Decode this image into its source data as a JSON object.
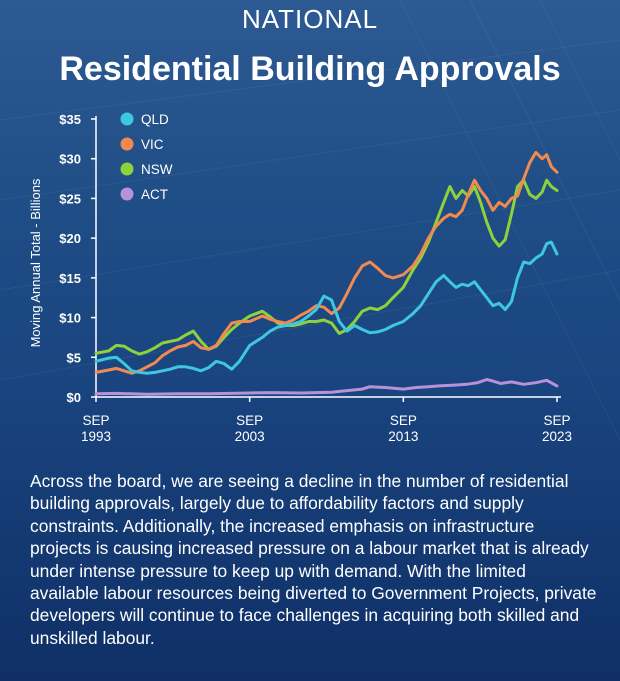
{
  "header": {
    "kicker": "NATIONAL",
    "title": "Residential Building Approvals"
  },
  "colors": {
    "QLD": "#3ec7e0",
    "VIC": "#f28a50",
    "NSW": "#8dd23c",
    "ACT": "#b792d8",
    "axis": "#ffffff"
  },
  "chart_data": {
    "type": "line",
    "ylabel": "Moving Annual Total - Billions",
    "ylim": [
      0,
      35
    ],
    "yticks": [
      "$0",
      "$5",
      "$10",
      "$15",
      "$20",
      "$25",
      "$30",
      "$35"
    ],
    "xlim": [
      1993.67,
      2023.67
    ],
    "xticks": [
      {
        "x": 1993.67,
        "line1": "SEP",
        "line2": "1993"
      },
      {
        "x": 2003.67,
        "line1": "SEP",
        "line2": "2003"
      },
      {
        "x": 2013.67,
        "line1": "SEP",
        "line2": "2013"
      },
      {
        "x": 2023.67,
        "line1": "SEP",
        "line2": "2023"
      }
    ],
    "legend_position": "top-left",
    "grid": false,
    "series": [
      {
        "name": "QLD",
        "points": [
          [
            1993.67,
            4.5
          ],
          [
            1994.5,
            4.9
          ],
          [
            1995.0,
            5.0
          ],
          [
            1995.5,
            4.2
          ],
          [
            1996.0,
            3.3
          ],
          [
            1996.5,
            3.1
          ],
          [
            1997.0,
            3.0
          ],
          [
            1997.5,
            3.1
          ],
          [
            1998.0,
            3.3
          ],
          [
            1998.5,
            3.5
          ],
          [
            1999.0,
            3.8
          ],
          [
            1999.5,
            3.8
          ],
          [
            2000.0,
            3.6
          ],
          [
            2000.5,
            3.3
          ],
          [
            2001.0,
            3.7
          ],
          [
            2001.5,
            4.5
          ],
          [
            2002.0,
            4.2
          ],
          [
            2002.5,
            3.5
          ],
          [
            2003.0,
            4.5
          ],
          [
            2003.67,
            6.5
          ],
          [
            2004.5,
            7.5
          ],
          [
            2005.0,
            8.3
          ],
          [
            2005.5,
            8.8
          ],
          [
            2006.0,
            9.0
          ],
          [
            2006.5,
            9.2
          ],
          [
            2007.0,
            9.5
          ],
          [
            2007.5,
            10.2
          ],
          [
            2008.0,
            11.0
          ],
          [
            2008.5,
            12.7
          ],
          [
            2009.0,
            12.2
          ],
          [
            2009.5,
            9.5
          ],
          [
            2010.0,
            8.3
          ],
          [
            2010.5,
            9.0
          ],
          [
            2011.0,
            8.5
          ],
          [
            2011.5,
            8.1
          ],
          [
            2012.0,
            8.2
          ],
          [
            2012.5,
            8.5
          ],
          [
            2013.0,
            9.0
          ],
          [
            2013.67,
            9.5
          ],
          [
            2014.3,
            10.5
          ],
          [
            2014.8,
            11.5
          ],
          [
            2015.3,
            13.0
          ],
          [
            2015.8,
            14.5
          ],
          [
            2016.3,
            15.3
          ],
          [
            2016.7,
            14.5
          ],
          [
            2017.1,
            13.8
          ],
          [
            2017.5,
            14.2
          ],
          [
            2017.9,
            14.0
          ],
          [
            2018.3,
            14.5
          ],
          [
            2018.7,
            13.5
          ],
          [
            2019.1,
            12.5
          ],
          [
            2019.5,
            11.5
          ],
          [
            2019.9,
            11.8
          ],
          [
            2020.3,
            11.0
          ],
          [
            2020.7,
            12.0
          ],
          [
            2021.1,
            15.0
          ],
          [
            2021.5,
            17.0
          ],
          [
            2021.9,
            16.8
          ],
          [
            2022.3,
            17.5
          ],
          [
            2022.7,
            18.0
          ],
          [
            2023.0,
            19.3
          ],
          [
            2023.3,
            19.5
          ],
          [
            2023.67,
            18.0
          ]
        ]
      },
      {
        "name": "VIC",
        "points": [
          [
            1993.67,
            3.1
          ],
          [
            1994.5,
            3.4
          ],
          [
            1995.0,
            3.6
          ],
          [
            1995.5,
            3.3
          ],
          [
            1996.0,
            3.0
          ],
          [
            1996.5,
            3.3
          ],
          [
            1997.0,
            3.8
          ],
          [
            1997.5,
            4.3
          ],
          [
            1998.0,
            5.2
          ],
          [
            1998.5,
            5.8
          ],
          [
            1999.0,
            6.3
          ],
          [
            1999.5,
            6.5
          ],
          [
            2000.0,
            7.0
          ],
          [
            2000.5,
            6.2
          ],
          [
            2001.0,
            6.0
          ],
          [
            2001.5,
            6.5
          ],
          [
            2002.0,
            8.0
          ],
          [
            2002.5,
            9.3
          ],
          [
            2003.0,
            9.5
          ],
          [
            2003.67,
            9.5
          ],
          [
            2004.5,
            10.2
          ],
          [
            2005.0,
            9.8
          ],
          [
            2005.5,
            9.5
          ],
          [
            2006.0,
            9.3
          ],
          [
            2006.5,
            9.7
          ],
          [
            2007.0,
            10.3
          ],
          [
            2007.5,
            10.8
          ],
          [
            2008.0,
            11.5
          ],
          [
            2008.5,
            11.3
          ],
          [
            2009.0,
            10.5
          ],
          [
            2009.5,
            11.2
          ],
          [
            2010.0,
            13.0
          ],
          [
            2010.5,
            15.0
          ],
          [
            2011.0,
            16.5
          ],
          [
            2011.5,
            17.0
          ],
          [
            2012.0,
            16.2
          ],
          [
            2012.5,
            15.3
          ],
          [
            2013.0,
            15.0
          ],
          [
            2013.67,
            15.4
          ],
          [
            2014.3,
            16.5
          ],
          [
            2014.8,
            18.0
          ],
          [
            2015.3,
            20.0
          ],
          [
            2015.8,
            21.5
          ],
          [
            2016.3,
            22.5
          ],
          [
            2016.7,
            23.0
          ],
          [
            2017.1,
            22.7
          ],
          [
            2017.5,
            23.5
          ],
          [
            2017.9,
            25.5
          ],
          [
            2018.3,
            27.3
          ],
          [
            2018.7,
            26.0
          ],
          [
            2019.1,
            25.0
          ],
          [
            2019.5,
            23.5
          ],
          [
            2019.9,
            24.5
          ],
          [
            2020.3,
            24.0
          ],
          [
            2020.7,
            25.0
          ],
          [
            2021.1,
            25.3
          ],
          [
            2021.5,
            27.5
          ],
          [
            2021.9,
            29.5
          ],
          [
            2022.3,
            30.8
          ],
          [
            2022.7,
            30.0
          ],
          [
            2023.0,
            30.5
          ],
          [
            2023.3,
            29.0
          ],
          [
            2023.67,
            28.3
          ]
        ]
      },
      {
        "name": "NSW",
        "points": [
          [
            1993.67,
            5.5
          ],
          [
            1994.5,
            5.8
          ],
          [
            1995.0,
            6.5
          ],
          [
            1995.5,
            6.4
          ],
          [
            1996.0,
            5.8
          ],
          [
            1996.5,
            5.4
          ],
          [
            1997.0,
            5.7
          ],
          [
            1997.5,
            6.2
          ],
          [
            1998.0,
            6.8
          ],
          [
            1998.5,
            7.0
          ],
          [
            1999.0,
            7.2
          ],
          [
            1999.5,
            7.8
          ],
          [
            2000.0,
            8.3
          ],
          [
            2000.5,
            7.0
          ],
          [
            2001.0,
            6.0
          ],
          [
            2001.5,
            6.4
          ],
          [
            2002.0,
            7.5
          ],
          [
            2002.5,
            8.5
          ],
          [
            2003.0,
            9.3
          ],
          [
            2003.67,
            10.2
          ],
          [
            2004.5,
            10.8
          ],
          [
            2005.0,
            10.1
          ],
          [
            2005.5,
            9.3
          ],
          [
            2006.0,
            9.0
          ],
          [
            2006.5,
            9.0
          ],
          [
            2007.0,
            9.2
          ],
          [
            2007.5,
            9.5
          ],
          [
            2008.0,
            9.5
          ],
          [
            2008.5,
            9.7
          ],
          [
            2009.0,
            9.3
          ],
          [
            2009.5,
            8.0
          ],
          [
            2010.0,
            8.5
          ],
          [
            2010.5,
            9.5
          ],
          [
            2011.0,
            10.8
          ],
          [
            2011.5,
            11.2
          ],
          [
            2012.0,
            11.0
          ],
          [
            2012.5,
            11.5
          ],
          [
            2013.0,
            12.5
          ],
          [
            2013.67,
            13.8
          ],
          [
            2014.3,
            16.0
          ],
          [
            2014.8,
            17.5
          ],
          [
            2015.3,
            19.5
          ],
          [
            2015.8,
            22.0
          ],
          [
            2016.3,
            24.5
          ],
          [
            2016.7,
            26.5
          ],
          [
            2017.1,
            25.0
          ],
          [
            2017.5,
            26.0
          ],
          [
            2017.9,
            25.3
          ],
          [
            2018.3,
            26.5
          ],
          [
            2018.7,
            24.5
          ],
          [
            2019.1,
            22.0
          ],
          [
            2019.5,
            20.0
          ],
          [
            2019.9,
            19.0
          ],
          [
            2020.3,
            19.8
          ],
          [
            2020.7,
            23.0
          ],
          [
            2021.1,
            26.5
          ],
          [
            2021.5,
            27.3
          ],
          [
            2021.9,
            25.5
          ],
          [
            2022.3,
            25.0
          ],
          [
            2022.7,
            25.8
          ],
          [
            2023.0,
            27.3
          ],
          [
            2023.3,
            26.5
          ],
          [
            2023.67,
            26.0
          ]
        ]
      },
      {
        "name": "ACT",
        "points": [
          [
            1993.67,
            0.4
          ],
          [
            1995.0,
            0.45
          ],
          [
            1997.0,
            0.35
          ],
          [
            1999.0,
            0.4
          ],
          [
            2001.0,
            0.4
          ],
          [
            2003.67,
            0.5
          ],
          [
            2005.0,
            0.55
          ],
          [
            2007.0,
            0.5
          ],
          [
            2009.0,
            0.6
          ],
          [
            2010.0,
            0.8
          ],
          [
            2011.0,
            1.0
          ],
          [
            2011.5,
            1.3
          ],
          [
            2012.5,
            1.2
          ],
          [
            2013.67,
            1.0
          ],
          [
            2014.5,
            1.2
          ],
          [
            2015.3,
            1.3
          ],
          [
            2016.0,
            1.4
          ],
          [
            2017.0,
            1.5
          ],
          [
            2017.8,
            1.6
          ],
          [
            2018.5,
            1.8
          ],
          [
            2019.1,
            2.2
          ],
          [
            2019.5,
            2.0
          ],
          [
            2020.0,
            1.7
          ],
          [
            2020.7,
            1.9
          ],
          [
            2021.5,
            1.6
          ],
          [
            2022.3,
            1.8
          ],
          [
            2023.0,
            2.1
          ],
          [
            2023.67,
            1.4
          ]
        ]
      }
    ]
  },
  "body_text": "Across the board, we are seeing a decline in the number of residential building approvals, largely due to affordability factors and supply constraints.  Additionally, the increased emphasis on infrastructure projects is causing increased pressure on a labour market that is already under intense pressure to keep up with demand. With the limited available labour resources being diverted to Government Projects, private developers will continue to face challenges in acquiring both skilled and unskilled labour."
}
